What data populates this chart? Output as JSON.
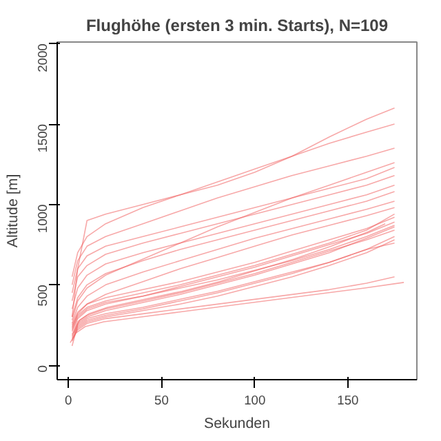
{
  "chart_data": {
    "type": "line",
    "title": "Flughöhe (ersten 3 min. Starts), N=109",
    "xlabel": "Sekunden",
    "ylabel": "Altitude [m]",
    "x": [
      2,
      5,
      10,
      20,
      40,
      60,
      80,
      100,
      120,
      140,
      160,
      175
    ],
    "xlim": [
      -6,
      187
    ],
    "ylim": [
      -90,
      2010
    ],
    "xticks": [
      0,
      50,
      100,
      150
    ],
    "yticks": [
      0,
      500,
      1000,
      1500,
      2000
    ],
    "grid": false,
    "line_style": "solid",
    "marker": "none",
    "series": [
      {
        "color": "#f06060",
        "values": [
          120,
          250,
          290,
          320,
          360,
          410,
          460,
          520,
          580,
          640,
          720,
          800
        ]
      },
      {
        "color": "#f06060",
        "values": [
          150,
          230,
          270,
          300,
          340,
          380,
          430,
          490,
          550,
          620,
          700,
          780
        ]
      },
      {
        "color": "#f06060",
        "values": [
          180,
          260,
          300,
          340,
          390,
          440,
          500,
          560,
          630,
          700,
          790,
          860
        ]
      },
      {
        "color": "#f06060",
        "x": [
          3,
          6,
          11,
          21,
          41,
          61,
          81,
          101,
          121,
          141,
          161,
          170
        ],
        "values": [
          200,
          280,
          320,
          360,
          410,
          460,
          520,
          590,
          660,
          740,
          830,
          880
        ]
      },
      {
        "color": "#f06060",
        "x": [
          1,
          4,
          9,
          19,
          39,
          59,
          79,
          99,
          119,
          139,
          159,
          180
        ],
        "values": [
          140,
          200,
          240,
          270,
          300,
          330,
          360,
          390,
          420,
          450,
          480,
          515
        ]
      },
      {
        "color": "#f06060",
        "values": [
          160,
          220,
          260,
          290,
          320,
          350,
          380,
          410,
          440,
          470,
          510,
          550
        ]
      },
      {
        "color": "#f06060",
        "values": [
          220,
          300,
          350,
          390,
          430,
          480,
          530,
          590,
          650,
          720,
          800,
          870
        ]
      },
      {
        "color": "#f06060",
        "values": [
          250,
          330,
          380,
          420,
          470,
          520,
          580,
          640,
          710,
          780,
          850,
          920
        ]
      },
      {
        "color": "#f06060",
        "values": [
          170,
          240,
          280,
          310,
          350,
          400,
          450,
          510,
          570,
          640,
          720,
          760
        ]
      },
      {
        "color": "#f06060",
        "values": [
          190,
          270,
          310,
          350,
          400,
          450,
          510,
          570,
          640,
          710,
          780,
          840
        ]
      },
      {
        "color": "#f06060",
        "values": [
          230,
          320,
          380,
          440,
          520,
          600,
          670,
          740,
          810,
          870,
          930,
          980
        ]
      },
      {
        "color": "#f06060",
        "values": [
          260,
          360,
          430,
          500,
          580,
          650,
          720,
          790,
          850,
          910,
          970,
          1020
        ]
      },
      {
        "color": "#f06060",
        "values": [
          300,
          420,
          500,
          570,
          650,
          720,
          780,
          840,
          900,
          960,
          1020,
          1080
        ]
      },
      {
        "color": "#f06060",
        "values": [
          350,
          480,
          560,
          630,
          700,
          760,
          820,
          880,
          940,
          1000,
          1060,
          1120
        ]
      },
      {
        "color": "#f06060",
        "values": [
          400,
          550,
          620,
          690,
          760,
          820,
          880,
          940,
          1000,
          1060,
          1120,
          1180
        ]
      },
      {
        "color": "#f06060",
        "values": [
          450,
          600,
          680,
          740,
          800,
          860,
          920,
          980,
          1040,
          1100,
          1160,
          1230
        ]
      },
      {
        "color": "#f06060",
        "values": [
          500,
          650,
          740,
          800,
          880,
          960,
          1040,
          1110,
          1180,
          1240,
          1300,
          1350
        ]
      },
      {
        "color": "#f06060",
        "values": [
          550,
          700,
          800,
          880,
          980,
          1060,
          1140,
          1220,
          1300,
          1380,
          1450,
          1500
        ]
      },
      {
        "color": "#f06060",
        "values": [
          300,
          600,
          900,
          940,
          1000,
          1060,
          1120,
          1200,
          1300,
          1420,
          1530,
          1600
        ]
      },
      {
        "color": "#f06060",
        "values": [
          280,
          400,
          480,
          560,
          660,
          760,
          860,
          950,
          1040,
          1120,
          1200,
          1260
        ]
      },
      {
        "color": "#f06060",
        "values": [
          210,
          290,
          340,
          380,
          430,
          490,
          550,
          610,
          680,
          750,
          820,
          890
        ]
      },
      {
        "color": "#f06060",
        "values": [
          240,
          310,
          360,
          400,
          450,
          500,
          560,
          620,
          690,
          760,
          840,
          940
        ]
      }
    ]
  }
}
